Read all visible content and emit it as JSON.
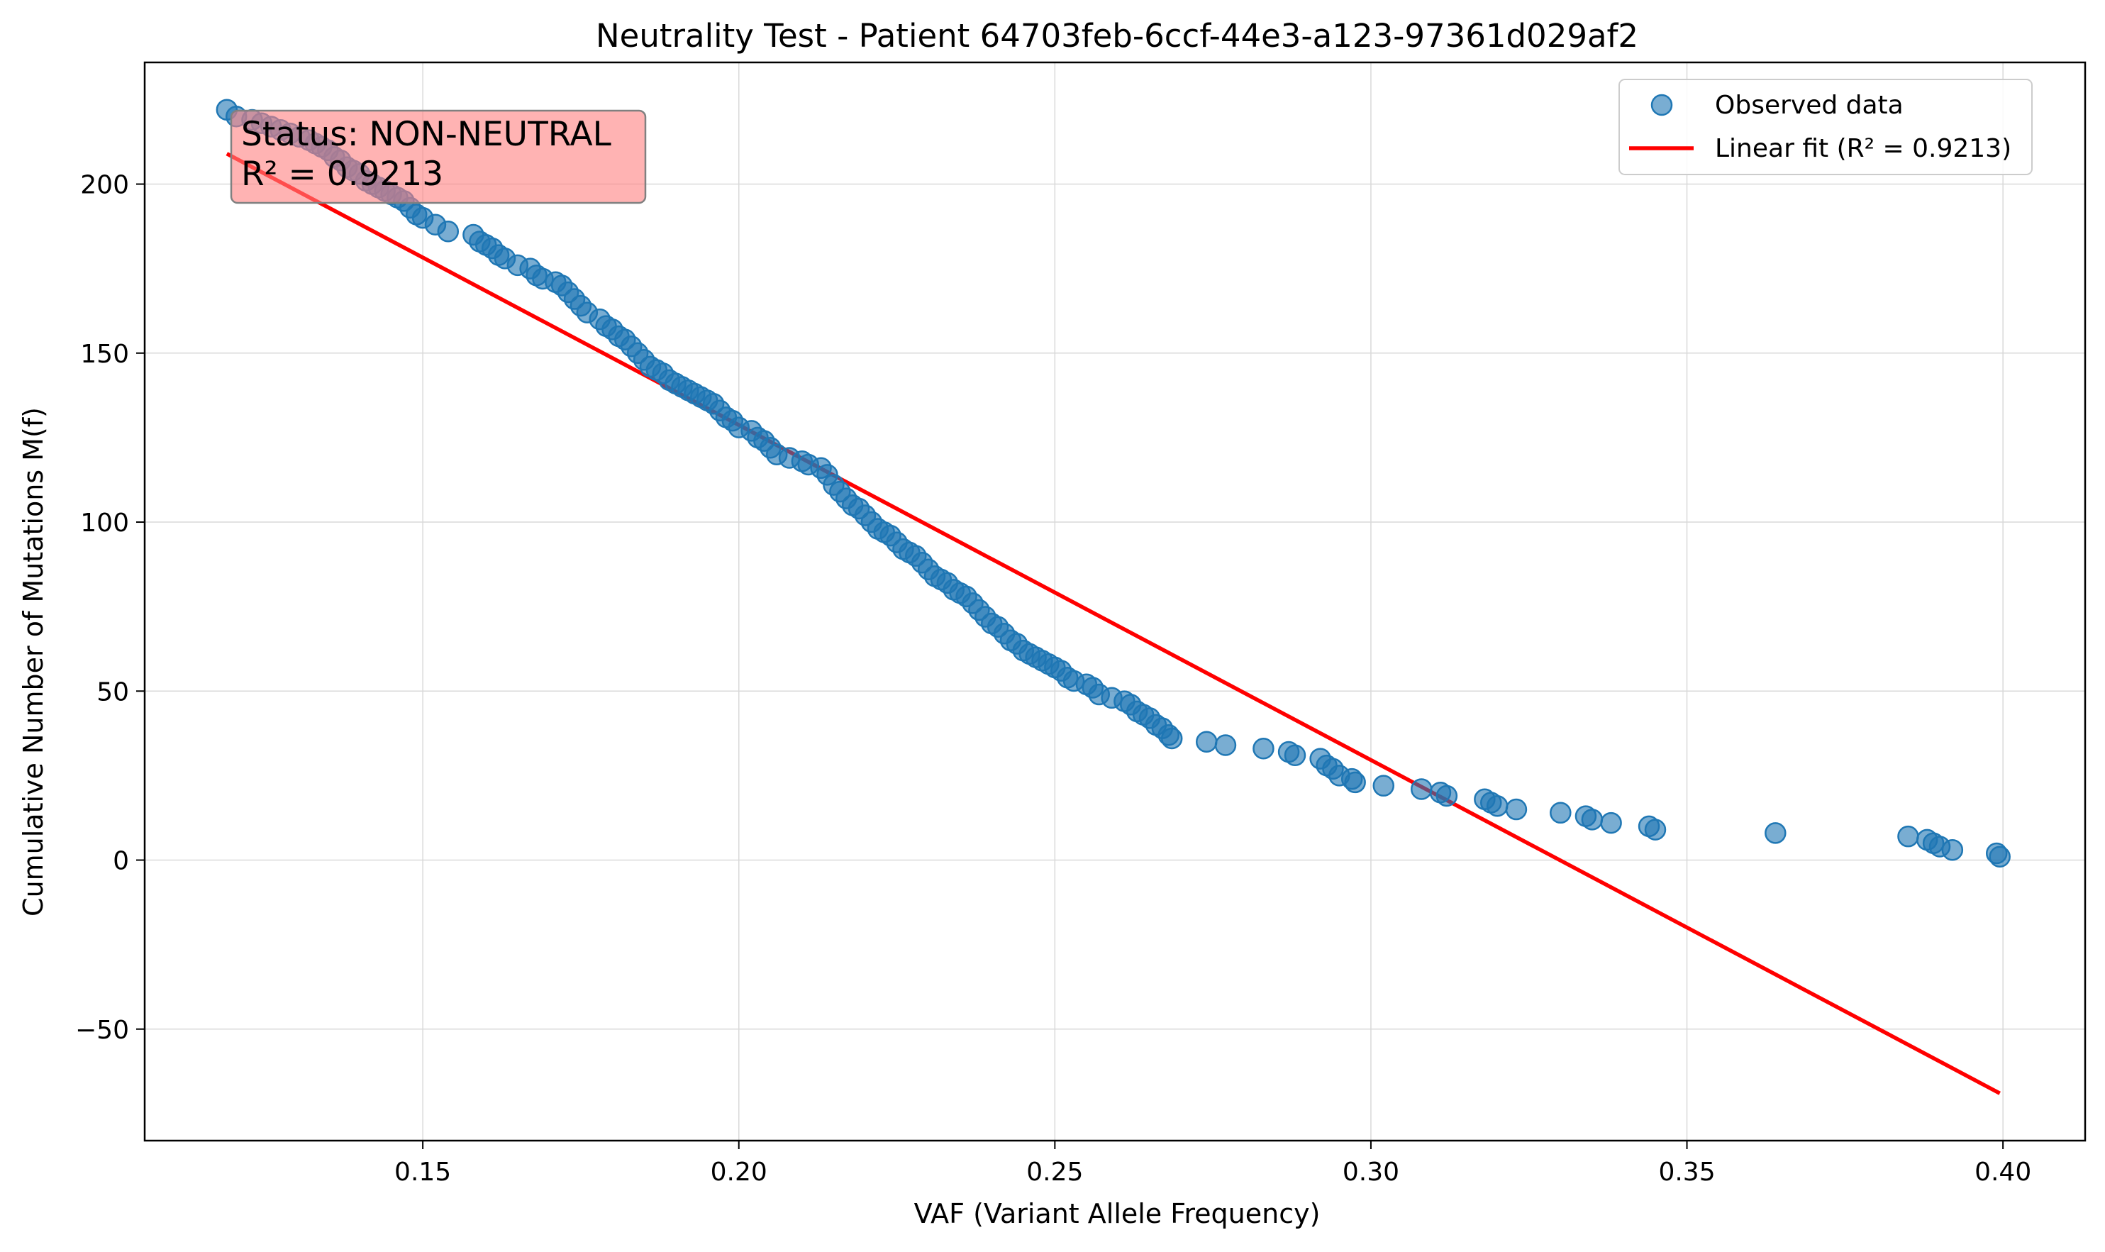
{
  "chart_data": {
    "type": "scatter",
    "title": "Neutrality Test - Patient 64703feb-6ccf-44e3-a123-97361d029af2",
    "xlabel": "VAF (Variant Allele Frequency)",
    "ylabel": "Cumulative Number of Mutations M(f)",
    "xlim": [
      0.106,
      0.413
    ],
    "ylim": [
      -83,
      236
    ],
    "x_ticks": [
      0.15,
      0.2,
      0.25,
      0.3,
      0.35,
      0.4
    ],
    "x_tick_labels": [
      "0.15",
      "0.20",
      "0.25",
      "0.30",
      "0.35",
      "0.40"
    ],
    "y_ticks": [
      -50,
      0,
      50,
      100,
      150,
      200
    ],
    "y_tick_labels": [
      "−50",
      "0",
      "50",
      "100",
      "150",
      "200"
    ],
    "grid": true,
    "legend_position": "top-right",
    "colors": {
      "scatter": "#1f77b4",
      "fit": "#ff0000",
      "status_box": "#ff8080"
    },
    "series": [
      {
        "name": "Observed data",
        "kind": "scatter",
        "points": [
          [
            0.119,
            222
          ],
          [
            0.1205,
            220
          ],
          [
            0.123,
            219
          ],
          [
            0.1245,
            218
          ],
          [
            0.126,
            217
          ],
          [
            0.1275,
            216
          ],
          [
            0.129,
            215
          ],
          [
            0.1305,
            214
          ],
          [
            0.132,
            213
          ],
          [
            0.133,
            212
          ],
          [
            0.134,
            211
          ],
          [
            0.135,
            210
          ],
          [
            0.136,
            208
          ],
          [
            0.137,
            207
          ],
          [
            0.138,
            205
          ],
          [
            0.139,
            204
          ],
          [
            0.14,
            203
          ],
          [
            0.141,
            201
          ],
          [
            0.142,
            200
          ],
          [
            0.143,
            199
          ],
          [
            0.144,
            198
          ],
          [
            0.145,
            197
          ],
          [
            0.146,
            196
          ],
          [
            0.147,
            195
          ],
          [
            0.148,
            193
          ],
          [
            0.149,
            191
          ],
          [
            0.15,
            190
          ],
          [
            0.152,
            188
          ],
          [
            0.154,
            186
          ],
          [
            0.158,
            185
          ],
          [
            0.159,
            183
          ],
          [
            0.16,
            182
          ],
          [
            0.161,
            181
          ],
          [
            0.162,
            179
          ],
          [
            0.163,
            178
          ],
          [
            0.165,
            176
          ],
          [
            0.167,
            175
          ],
          [
            0.168,
            173
          ],
          [
            0.169,
            172
          ],
          [
            0.171,
            171
          ],
          [
            0.172,
            170
          ],
          [
            0.173,
            168
          ],
          [
            0.174,
            166
          ],
          [
            0.175,
            164
          ],
          [
            0.176,
            162
          ],
          [
            0.178,
            160
          ],
          [
            0.179,
            158
          ],
          [
            0.18,
            157
          ],
          [
            0.181,
            155
          ],
          [
            0.182,
            154
          ],
          [
            0.183,
            152
          ],
          [
            0.184,
            150
          ],
          [
            0.185,
            148
          ],
          [
            0.186,
            146
          ],
          [
            0.187,
            145
          ],
          [
            0.188,
            144
          ],
          [
            0.189,
            142
          ],
          [
            0.19,
            141
          ],
          [
            0.191,
            140
          ],
          [
            0.192,
            139
          ],
          [
            0.193,
            138
          ],
          [
            0.194,
            137
          ],
          [
            0.195,
            136
          ],
          [
            0.196,
            135
          ],
          [
            0.197,
            133
          ],
          [
            0.198,
            131
          ],
          [
            0.199,
            130
          ],
          [
            0.2,
            128
          ],
          [
            0.202,
            127
          ],
          [
            0.203,
            125
          ],
          [
            0.204,
            124
          ],
          [
            0.205,
            122
          ],
          [
            0.206,
            120
          ],
          [
            0.208,
            119
          ],
          [
            0.21,
            118
          ],
          [
            0.211,
            117
          ],
          [
            0.213,
            116
          ],
          [
            0.214,
            114
          ],
          [
            0.215,
            111
          ],
          [
            0.216,
            109
          ],
          [
            0.217,
            107
          ],
          [
            0.218,
            105
          ],
          [
            0.219,
            104
          ],
          [
            0.22,
            102
          ],
          [
            0.221,
            100
          ],
          [
            0.222,
            98
          ],
          [
            0.223,
            97
          ],
          [
            0.224,
            96
          ],
          [
            0.225,
            94
          ],
          [
            0.226,
            92
          ],
          [
            0.227,
            91
          ],
          [
            0.228,
            90
          ],
          [
            0.229,
            88
          ],
          [
            0.23,
            86
          ],
          [
            0.231,
            84
          ],
          [
            0.232,
            83
          ],
          [
            0.233,
            82
          ],
          [
            0.234,
            80
          ],
          [
            0.235,
            79
          ],
          [
            0.236,
            78
          ],
          [
            0.237,
            76
          ],
          [
            0.238,
            74
          ],
          [
            0.239,
            72
          ],
          [
            0.24,
            70
          ],
          [
            0.241,
            69
          ],
          [
            0.242,
            67
          ],
          [
            0.243,
            65
          ],
          [
            0.244,
            64
          ],
          [
            0.245,
            62
          ],
          [
            0.246,
            61
          ],
          [
            0.247,
            60
          ],
          [
            0.248,
            59
          ],
          [
            0.249,
            58
          ],
          [
            0.25,
            57
          ],
          [
            0.251,
            56
          ],
          [
            0.252,
            54
          ],
          [
            0.253,
            53
          ],
          [
            0.255,
            52
          ],
          [
            0.256,
            51
          ],
          [
            0.257,
            49
          ],
          [
            0.259,
            48
          ],
          [
            0.261,
            47
          ],
          [
            0.262,
            46
          ],
          [
            0.263,
            44
          ],
          [
            0.264,
            43
          ],
          [
            0.265,
            42
          ],
          [
            0.266,
            40
          ],
          [
            0.267,
            39
          ],
          [
            0.268,
            37
          ],
          [
            0.2685,
            36
          ],
          [
            0.274,
            35
          ],
          [
            0.277,
            34
          ],
          [
            0.283,
            33
          ],
          [
            0.287,
            32
          ],
          [
            0.288,
            31
          ],
          [
            0.292,
            30
          ],
          [
            0.293,
            28
          ],
          [
            0.294,
            27
          ],
          [
            0.295,
            25
          ],
          [
            0.297,
            24
          ],
          [
            0.2975,
            23
          ],
          [
            0.302,
            22
          ],
          [
            0.308,
            21
          ],
          [
            0.311,
            20
          ],
          [
            0.312,
            19
          ],
          [
            0.318,
            18
          ],
          [
            0.319,
            17
          ],
          [
            0.32,
            16
          ],
          [
            0.323,
            15
          ],
          [
            0.33,
            14
          ],
          [
            0.334,
            13
          ],
          [
            0.335,
            12
          ],
          [
            0.338,
            11
          ],
          [
            0.344,
            10
          ],
          [
            0.345,
            9
          ],
          [
            0.364,
            8
          ],
          [
            0.385,
            7
          ],
          [
            0.388,
            6
          ],
          [
            0.389,
            5
          ],
          [
            0.39,
            4
          ],
          [
            0.392,
            3
          ],
          [
            0.399,
            2
          ],
          [
            0.3995,
            1
          ]
        ]
      },
      {
        "name": "Linear fit (R² = 0.9213)",
        "kind": "line",
        "points": [
          [
            0.119,
            209
          ],
          [
            0.3995,
            -69
          ]
        ]
      }
    ],
    "annotation": {
      "lines": [
        "Status: NON-NEUTRAL",
        "R² = 0.9213"
      ],
      "position": "top-left"
    }
  }
}
